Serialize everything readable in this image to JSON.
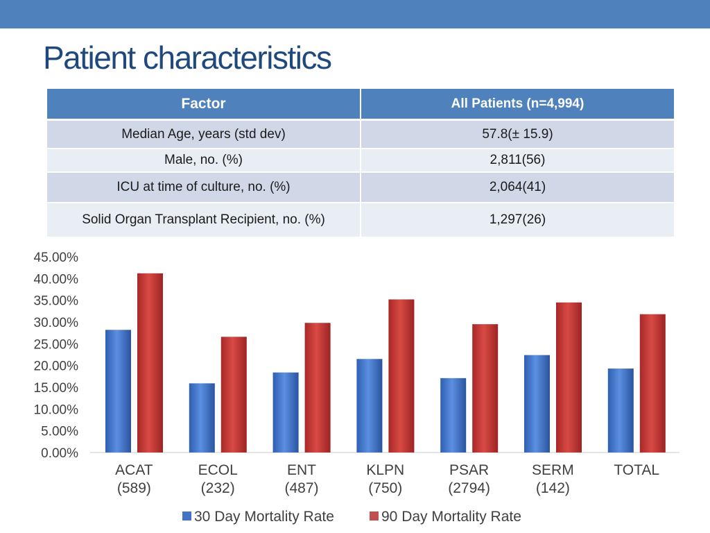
{
  "slide": {
    "title": "Patient characteristics"
  },
  "table": {
    "headers": [
      "Factor",
      "All Patients (n=4,994)"
    ],
    "rows": [
      [
        "Median Age, years (std dev)",
        "57.8(± 15.9)"
      ],
      [
        "Male, no. (%)",
        "2,811(56)"
      ],
      [
        "ICU at time of culture, no. (%)",
        "2,064(41)"
      ],
      [
        "Solid Organ Transplant Recipient, no. (%)",
        "1,297(26)"
      ]
    ]
  },
  "chart_data": {
    "type": "bar",
    "categories": [
      [
        "ACAT",
        "(589)"
      ],
      [
        "ECOL",
        "(232)"
      ],
      [
        "ENT",
        "(487)"
      ],
      [
        "KLPN",
        "(750)"
      ],
      [
        "PSAR",
        "(2794)"
      ],
      [
        "SERM",
        "(142)"
      ],
      [
        "TOTAL"
      ]
    ],
    "series": [
      {
        "name": "30 Day Mortality Rate",
        "color": "#4472c4",
        "values": [
          28.2,
          15.9,
          18.4,
          21.5,
          17.1,
          22.4,
          19.3
        ]
      },
      {
        "name": "90 Day Mortality Rate",
        "color": "#c0504d",
        "values": [
          41.2,
          26.6,
          29.8,
          35.2,
          29.5,
          34.5,
          31.8
        ]
      }
    ],
    "ylim": [
      0,
      45
    ],
    "yticks": [
      "0.00%",
      "5.00%",
      "10.00%",
      "15.00%",
      "20.00%",
      "25.00%",
      "30.00%",
      "35.00%",
      "40.00%",
      "45.00%"
    ],
    "gridlines": false,
    "legend": "bottom"
  }
}
